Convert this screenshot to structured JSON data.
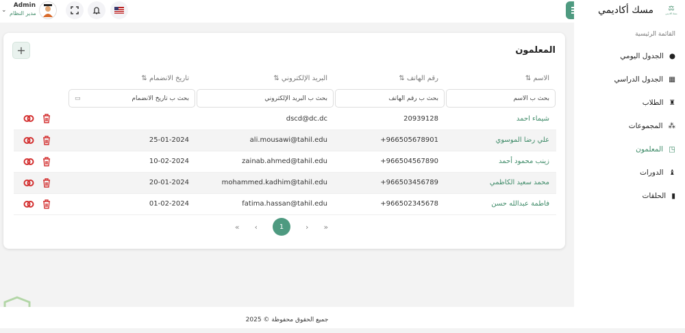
{
  "header": {
    "user_name": "Admin",
    "user_role": "مدير النظام",
    "icons": [
      "chevron-down-icon",
      "avatar",
      "fullscreen-icon",
      "bell-icon",
      "us-flag-icon"
    ]
  },
  "sidebar": {
    "brand": "مسك أكاديمي",
    "logo_text": "مسك أكاديمي",
    "section": "القائمة الرئيسية",
    "items": [
      {
        "label": "الجدول اليومي",
        "icon": "clock-icon"
      },
      {
        "label": "الجدول الدراسي",
        "icon": "calendar-icon"
      },
      {
        "label": "الطلاب",
        "icon": "student-icon"
      },
      {
        "label": "المجموعات",
        "icon": "users-icon"
      },
      {
        "label": "المعلمون",
        "icon": "teacher-icon",
        "active": true
      },
      {
        "label": "الدورات",
        "icon": "courses-icon"
      },
      {
        "label": "الحلقات",
        "icon": "door-icon"
      }
    ]
  },
  "page": {
    "title": "المعلمون",
    "add_label": "+"
  },
  "table": {
    "columns": [
      "الاسم",
      "رقم الهاتف",
      "البريد الإلكتروني",
      "تاريخ الانضمام"
    ],
    "sort_icon": "⇅",
    "filters": [
      "بحث ب الاسم",
      "بحث ب رقم الهاتف",
      "بحث ب البريد الإلكتروني",
      "بحث ب تاريخ الانضمام"
    ],
    "rows": [
      {
        "name": "شيماء احمد",
        "phone": "20939128",
        "email": "dscd@dc.dc",
        "date": ""
      },
      {
        "name": "علي رضا الموسوي",
        "phone": "966505678901+",
        "email": "ali.mousawi@tahil.edu",
        "date": "25-01-2024"
      },
      {
        "name": "زينب محمود أحمد",
        "phone": "966504567890+",
        "email": "zainab.ahmed@tahil.edu",
        "date": "10-02-2024"
      },
      {
        "name": "محمد سعيد الكاظمي",
        "phone": "966503456789+",
        "email": "mohammed.kadhim@tahil.edu",
        "date": "20-01-2024"
      },
      {
        "name": "فاطمة عبدالله حسن",
        "phone": "966502345678+",
        "email": "fatima.hassan@tahil.edu",
        "date": "01-02-2024"
      }
    ]
  },
  "pagination": {
    "first": "«",
    "prev": "‹",
    "current": "1",
    "next": "›",
    "last": "»"
  },
  "footer": {
    "text": "جميع الحقوق محفوظة © 2025"
  },
  "colors": {
    "primary": "#4e9a80",
    "danger": "#d32f2f"
  }
}
